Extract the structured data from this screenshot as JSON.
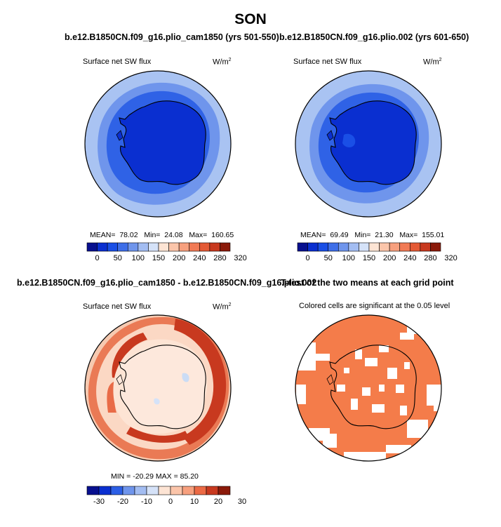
{
  "main_title": "SON",
  "panels": [
    {
      "title": "b.e12.B1850CN.f09_g16.plio_cam1850 (yrs 501-550)",
      "variable": "Surface net SW flux",
      "units": "W/m",
      "units_exp": "2",
      "mean_label": "MEAN=",
      "mean": "78.02",
      "min_label": "Min=",
      "min": "24.08",
      "max_label": "Max=",
      "max": "160.65"
    },
    {
      "title": "b.e12.B1850CN.f09_g16.plio.002 (yrs 601-650)",
      "variable": "Surface net SW flux",
      "units": "W/m",
      "units_exp": "2",
      "mean_label": "MEAN=",
      "mean": "69.49",
      "min_label": "Min=",
      "min": "21.30",
      "max_label": "Max=",
      "max": "155.01"
    },
    {
      "title": "b.e12.B1850CN.f09_g16.plio_cam1850 - b.e12.B1850CN.f09_g16.plio.002",
      "variable": "Surface net SW flux",
      "units": "W/m",
      "units_exp": "2",
      "stats_text": "MIN = -20.29   MAX =   85.20"
    },
    {
      "title": "T-test of the two means at each grid point",
      "subtitle": "Colored cells are significant at the 0.05 level"
    }
  ],
  "colorbar_abs": {
    "colors": [
      "#08108f",
      "#0a2fd0",
      "#1a4fe6",
      "#3e6ee8",
      "#6f95ec",
      "#a3bdf2",
      "#d5e2f8",
      "#fde4d4",
      "#fbc5aa",
      "#f7a07e",
      "#f17a55",
      "#e45a35",
      "#c8391f",
      "#8b1a0a"
    ],
    "tick_labels": [
      "0",
      "50",
      "100",
      "150",
      "200",
      "240",
      "280",
      "320"
    ]
  },
  "colorbar_diff": {
    "colors": [
      "#08108f",
      "#0a2fd0",
      "#2c5fe6",
      "#6f95ec",
      "#a3bdf2",
      "#d5e2f8",
      "#fde4d4",
      "#fbc5aa",
      "#f7a07e",
      "#ec6a45",
      "#c8391f",
      "#8b1a0a"
    ],
    "tick_labels": [
      "-30",
      "-20",
      "-10",
      "0",
      "10",
      "20",
      "30"
    ]
  },
  "colors": {
    "ocean_outer": "#a9c3f2",
    "ocean_mid": "#6f95ec",
    "ocean_inner": "#2f62e6",
    "land_abs": "#0a2fd0",
    "diff_bg": "#fbe3d4",
    "diff_ring": "#e45a35",
    "ttest_fill": "#f47c4a"
  }
}
